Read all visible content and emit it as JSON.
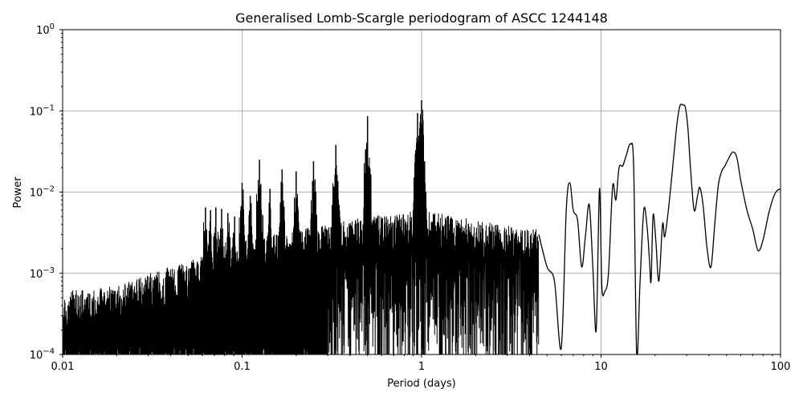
{
  "chart_data": {
    "type": "line",
    "title": "Generalised Lomb-Scargle periodogram of ASCC 1244148",
    "xlabel": "Period (days)",
    "ylabel": "Power",
    "xscale": "log",
    "yscale": "log",
    "xlim": [
      0.01,
      100
    ],
    "ylim": [
      0.0001,
      1
    ],
    "grid": true,
    "legend": null,
    "x_ticks": [
      {
        "value": 0.01,
        "label": "0.01"
      },
      {
        "value": 0.1,
        "label": "0.1"
      },
      {
        "value": 1,
        "label": "1"
      },
      {
        "value": 10,
        "label": "10"
      },
      {
        "value": 100,
        "label": "100"
      }
    ],
    "y_ticks": [
      {
        "value": 0.0001,
        "base": "10",
        "exp": "−4"
      },
      {
        "value": 0.001,
        "base": "10",
        "exp": "−3"
      },
      {
        "value": 0.01,
        "base": "10",
        "exp": "−2"
      },
      {
        "value": 0.1,
        "base": "10",
        "exp": "−1"
      },
      {
        "value": 1,
        "base": "10",
        "exp": "0"
      }
    ],
    "line_color": "#000000",
    "grid_color": "#b0b0b0",
    "noise_floor_envelope": {
      "description": "dense high-frequency noise; upper envelope of noise rises with period",
      "period": [
        0.01,
        0.02,
        0.03,
        0.05,
        0.08,
        0.1,
        0.2,
        0.3,
        0.5,
        1.0,
        2.0,
        4.0
      ],
      "upper_power": [
        0.0006,
        0.0007,
        0.001,
        0.0014,
        0.002,
        0.0025,
        0.0035,
        0.004,
        0.005,
        0.006,
        0.0045,
        0.0035
      ]
    },
    "alias_peaks": {
      "period": [
        0.0625,
        0.0667,
        0.0714,
        0.0769,
        0.0833,
        0.0909,
        0.1,
        0.111,
        0.125,
        0.143,
        0.167,
        0.2,
        0.25,
        0.333,
        0.5,
        0.95,
        1.0
      ],
      "power": [
        0.0065,
        0.006,
        0.0065,
        0.0062,
        0.0055,
        0.005,
        0.013,
        0.009,
        0.025,
        0.011,
        0.019,
        0.018,
        0.024,
        0.038,
        0.086,
        0.094,
        0.135
      ]
    },
    "long_period_curve": {
      "period": [
        4.5,
        5.0,
        5.5,
        6.0,
        6.4,
        6.7,
        7.0,
        7.4,
        7.8,
        8.2,
        8.6,
        9.0,
        9.4,
        9.8,
        10.1,
        10.5,
        11.0,
        11.6,
        12.1,
        12.6,
        13.2,
        13.8,
        14.6,
        15.2,
        15.8,
        16.5,
        17.3,
        18.0,
        18.6,
        19.0,
        19.5,
        20.2,
        21.0,
        22.0,
        22.6,
        23.5,
        24.5,
        25.5,
        26.5,
        27.5,
        28.5,
        29.5,
        30.5,
        31.5,
        33.0,
        34.5,
        35.5,
        37.0,
        39.0,
        41.0,
        43.0,
        45.0,
        47.0,
        49.0,
        51.0,
        54.0,
        57.0,
        60.0,
        65.0,
        70.0,
        75.0,
        80.0,
        86.0,
        92.0,
        97.0,
        100.0
      ],
      "power": [
        0.003,
        0.0012,
        0.0008,
        0.00012,
        0.006,
        0.013,
        0.006,
        0.0045,
        0.0012,
        0.003,
        0.007,
        0.0012,
        0.0002,
        0.011,
        0.0007,
        0.0006,
        0.001,
        0.0117,
        0.008,
        0.02,
        0.021,
        0.028,
        0.039,
        0.02,
        0.0001,
        0.0008,
        0.006,
        0.004,
        0.0015,
        0.0008,
        0.0052,
        0.0025,
        0.0008,
        0.004,
        0.0028,
        0.005,
        0.012,
        0.03,
        0.07,
        0.115,
        0.118,
        0.11,
        0.06,
        0.02,
        0.006,
        0.009,
        0.0114,
        0.007,
        0.002,
        0.0012,
        0.004,
        0.012,
        0.018,
        0.021,
        0.025,
        0.031,
        0.027,
        0.014,
        0.006,
        0.0035,
        0.0019,
        0.0026,
        0.0055,
        0.009,
        0.0107,
        0.0107
      ]
    },
    "highest_peak": {
      "period": 1.0,
      "power": 0.135
    },
    "annotations": []
  }
}
